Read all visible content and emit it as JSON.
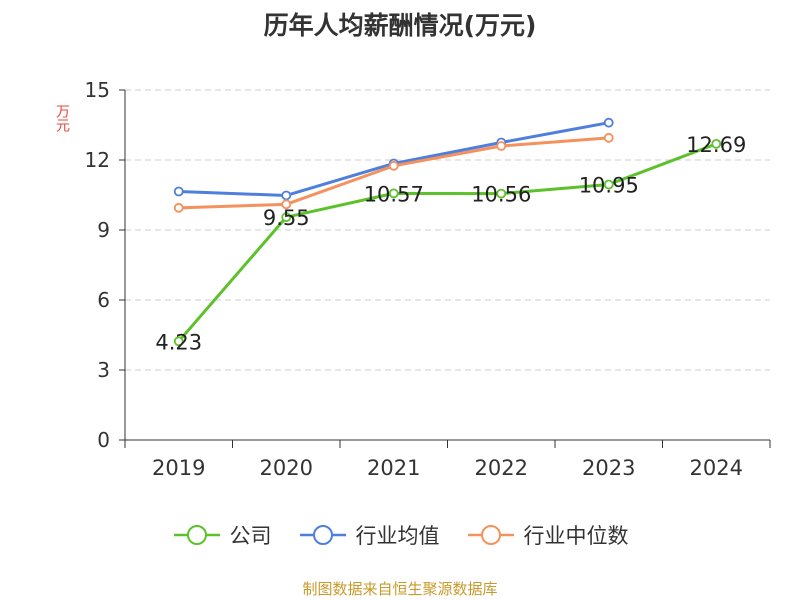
{
  "title": "历年人均薪酬情况(万元)",
  "unit_label": "万元",
  "source_note": "制图数据来自恒生聚源数据库",
  "colors": {
    "company": "#5cc12a",
    "industry_avg": "#4f7fdc",
    "industry_median": "#f5915c",
    "unit_label": "#e8473f",
    "source_note": "#c89a2a",
    "axis": "#333333",
    "grid": "#cccccc"
  },
  "chart_data": {
    "type": "line",
    "categories": [
      "2019",
      "2020",
      "2021",
      "2022",
      "2023",
      "2024"
    ],
    "ylim": [
      0,
      15
    ],
    "yticks": [
      0,
      3,
      6,
      9,
      12,
      15
    ],
    "grid": true,
    "legend_position": "bottom",
    "series": [
      {
        "name": "公司",
        "color_key": "company",
        "values": [
          4.23,
          9.55,
          10.57,
          10.56,
          10.95,
          12.69
        ],
        "labels": [
          "4.23",
          "9.55",
          "10.57",
          "10.56",
          "10.95",
          "12.69"
        ]
      },
      {
        "name": "行业均值",
        "color_key": "industry_avg",
        "values": [
          10.65,
          10.48,
          11.85,
          12.75,
          13.6,
          null
        ]
      },
      {
        "name": "行业中位数",
        "color_key": "industry_median",
        "values": [
          9.95,
          10.1,
          11.75,
          12.6,
          12.95,
          null
        ]
      }
    ]
  }
}
